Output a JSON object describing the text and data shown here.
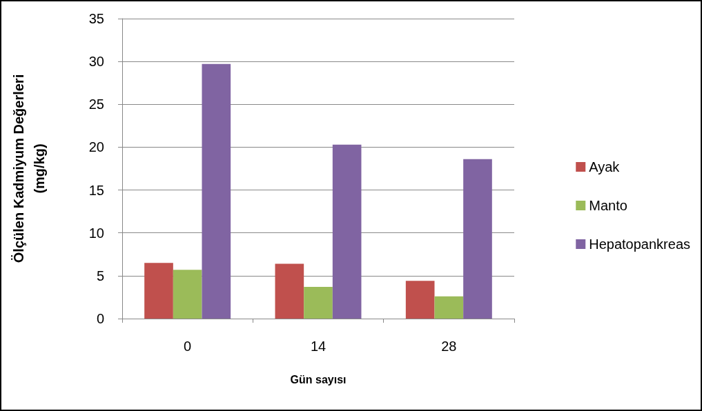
{
  "chart_data": {
    "type": "bar",
    "xlabel": "Gün sayısı",
    "ylabel": "Ölçülen Kadmiyum Değerleri\n(mg/kg)",
    "categories": [
      "0",
      "14",
      "28"
    ],
    "series": [
      {
        "name": "Ayak",
        "color": "#c0504d",
        "values": [
          6.5,
          6.4,
          4.4
        ]
      },
      {
        "name": "Manto",
        "color": "#9bbb59",
        "values": [
          5.7,
          3.7,
          2.6
        ]
      },
      {
        "name": "Hepatopankreas",
        "color": "#8064a2",
        "values": [
          29.7,
          20.3,
          18.6
        ]
      }
    ],
    "ylim": [
      0,
      35
    ],
    "yticks": [
      0,
      5,
      10,
      15,
      20,
      25,
      30,
      35
    ],
    "grid": "y",
    "legend": "right"
  }
}
